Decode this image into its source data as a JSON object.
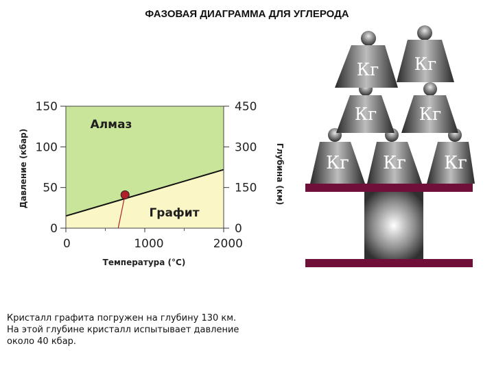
{
  "title": "ФАЗОВАЯ ДИАГРАММА ДЛЯ УГЛЕРОДА",
  "chart_data": {
    "type": "phase-diagram",
    "xlabel": "Температура (°C)",
    "ylabel_left": "Давление (кбар)",
    "ylabel_right": "Глубина (км)",
    "xlim": [
      0,
      2000
    ],
    "ylim": [
      0,
      150
    ],
    "x_ticks": [
      "0",
      "1000",
      "2000"
    ],
    "y_ticks_left": [
      "0",
      "50",
      "100",
      "150"
    ],
    "y_ticks_right": [
      "0",
      "150",
      "300",
      "450"
    ],
    "regions": [
      {
        "label": "Алмаз",
        "color": "#c9e59a"
      },
      {
        "label": "Графит",
        "color": "#fbf6c6"
      }
    ],
    "boundary": [
      [
        0,
        15
      ],
      [
        2000,
        72
      ]
    ],
    "point": {
      "temperature": 750,
      "pressure": 41,
      "color": "#b0202a"
    }
  },
  "weights": {
    "label": "Кг",
    "colors": {
      "beam": "#70103a",
      "pedestal": "#6a6a6a"
    }
  },
  "caption": {
    "lines": [
      "Кристалл графита погружен на глубину 130 км.",
      "На этой глубине кристалл испытывает давление",
      "около 40 кбар."
    ]
  }
}
